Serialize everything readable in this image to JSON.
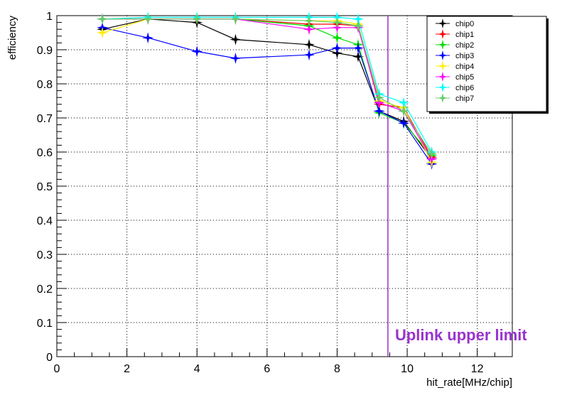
{
  "chart_data": {
    "type": "line",
    "title": "",
    "xlabel": "hit_rate[MHz/chip]",
    "ylabel": "efficiency",
    "xlim": [
      0,
      13
    ],
    "ylim": [
      0,
      1
    ],
    "xticks": [
      0,
      2,
      4,
      6,
      8,
      10,
      12
    ],
    "yticks": [
      0,
      0.1,
      0.2,
      0.3,
      0.4,
      0.5,
      0.6,
      0.7,
      0.8,
      0.9,
      1
    ],
    "grid": true,
    "legend_position": "top-right",
    "annotations": [
      {
        "type": "vline",
        "x": 9.45,
        "label": "Uplink upper limit",
        "color": "#9933cc"
      }
    ],
    "series": [
      {
        "name": "chip0",
        "color": "#000000",
        "x": [
          1.3,
          2.6,
          4.0,
          5.1,
          7.2,
          8.0,
          8.6,
          9.2,
          9.9,
          10.7
        ],
        "y": [
          0.96,
          0.99,
          0.98,
          0.93,
          0.915,
          0.89,
          0.88,
          0.72,
          0.69,
          0.58
        ]
      },
      {
        "name": "chip1",
        "color": "#ff0000",
        "x": [
          1.3,
          2.6,
          4.0,
          5.1,
          7.2,
          8.0,
          8.6,
          9.2,
          9.9,
          10.7
        ],
        "y": [
          0.99,
          0.99,
          0.99,
          0.99,
          0.975,
          0.975,
          0.97,
          0.74,
          0.73,
          0.585
        ]
      },
      {
        "name": "chip2",
        "color": "#00dd00",
        "x": [
          1.3,
          2.6,
          4.0,
          5.1,
          7.2,
          8.0,
          8.6,
          9.2,
          9.9,
          10.7
        ],
        "y": [
          0.99,
          0.99,
          0.99,
          0.99,
          0.97,
          0.935,
          0.915,
          0.715,
          0.685,
          0.59
        ]
      },
      {
        "name": "chip3",
        "color": "#0000ff",
        "x": [
          1.3,
          2.6,
          4.0,
          5.1,
          7.2,
          8.0,
          8.6,
          9.2,
          9.9,
          10.7
        ],
        "y": [
          0.965,
          0.935,
          0.895,
          0.875,
          0.885,
          0.905,
          0.905,
          0.72,
          0.685,
          0.565
        ]
      },
      {
        "name": "chip4",
        "color": "#ffee00",
        "x": [
          1.3,
          2.6,
          4.0,
          5.1,
          7.2,
          8.0,
          8.6,
          9.2,
          9.9,
          10.7
        ],
        "y": [
          0.95,
          0.99,
          0.99,
          0.99,
          0.985,
          0.985,
          0.975,
          0.75,
          0.73,
          0.57
        ]
      },
      {
        "name": "chip5",
        "color": "#ff00ff",
        "x": [
          1.3,
          2.6,
          4.0,
          5.1,
          7.2,
          8.0,
          8.6,
          9.2,
          9.9,
          10.7
        ],
        "y": [
          0.99,
          0.99,
          0.99,
          0.99,
          0.96,
          0.965,
          0.965,
          0.745,
          0.72,
          0.58
        ]
      },
      {
        "name": "chip6",
        "color": "#00ffff",
        "x": [
          1.3,
          2.6,
          4.0,
          5.1,
          7.2,
          8.0,
          8.6,
          9.2,
          9.9,
          10.7
        ],
        "y": [
          0.99,
          0.995,
          0.995,
          0.995,
          0.995,
          0.995,
          0.99,
          0.77,
          0.745,
          0.6
        ]
      },
      {
        "name": "chip7",
        "color": "#66cc66",
        "x": [
          1.3,
          2.6,
          4.0,
          5.1,
          7.2,
          8.0,
          8.6,
          9.2,
          9.9,
          10.7
        ],
        "y": [
          0.99,
          0.99,
          0.99,
          0.99,
          0.985,
          0.98,
          0.97,
          0.76,
          0.72,
          0.595
        ]
      }
    ]
  }
}
